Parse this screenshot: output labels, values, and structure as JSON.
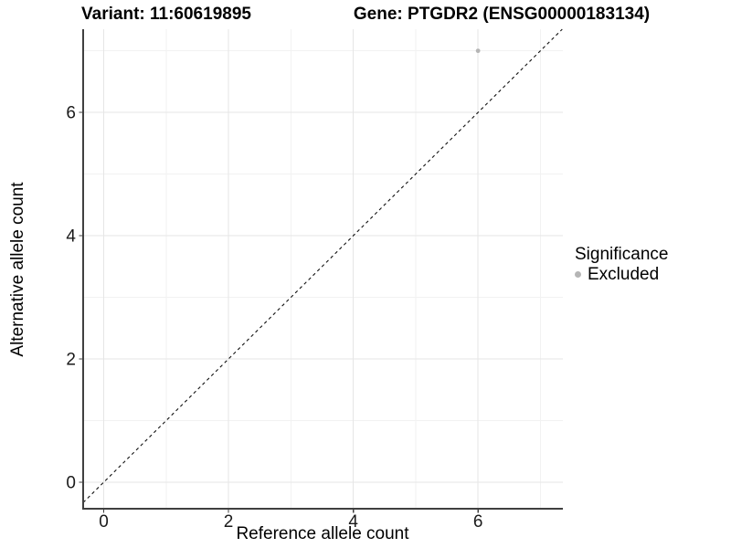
{
  "chart_data": {
    "type": "scatter",
    "title_left": "Variant: 11:60619895",
    "title_right": "Gene: PTGDR2 (ENSG00000183134)",
    "xlabel": "Reference allele count",
    "ylabel": "Alternative allele count",
    "x_ticks": [
      0,
      2,
      4,
      6
    ],
    "y_ticks": [
      0,
      2,
      4,
      6
    ],
    "x_minor_ticks": [
      1,
      3,
      5,
      7
    ],
    "y_minor_ticks": [
      1,
      3,
      5,
      7
    ],
    "xlim": [
      -0.33,
      7.36
    ],
    "ylim": [
      -0.43,
      7.35
    ],
    "points": [
      {
        "x": 6,
        "y": 7,
        "series": "Excluded"
      }
    ],
    "reference_line": {
      "equation": "y = x",
      "slope": 1,
      "intercept": 0,
      "style": "dashed",
      "color": "#111111"
    },
    "legend": {
      "title": "Significance",
      "position": "right",
      "items": [
        {
          "label": "Excluded",
          "color": "#b5b5b5"
        }
      ]
    },
    "point_color": "#b5b5b5",
    "colors": {
      "axis_line": "#404040",
      "tick_label": "#1a1a1a",
      "grid_major": "#e6e6e6",
      "grid_minor": "#f2f2f2",
      "background": "#ffffff"
    },
    "grid": true
  }
}
